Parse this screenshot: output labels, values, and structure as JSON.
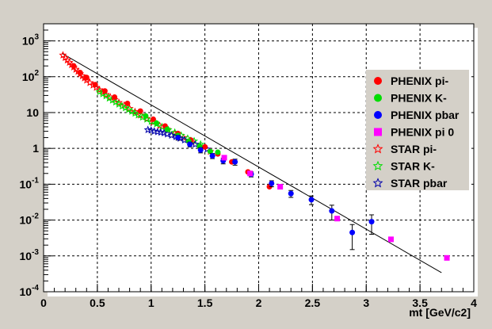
{
  "chart_data": {
    "type": "scatter",
    "title": "",
    "xlabel": "mt [GeV/c2]",
    "ylabel": "",
    "xlim": [
      0,
      4
    ],
    "ylim": [
      0.0001,
      3000
    ],
    "y_scale": "log",
    "grid": true,
    "legend_position": "right",
    "x_ticks": [
      "0",
      "0.5",
      "1",
      "1.5",
      "2",
      "2.5",
      "3",
      "3.5",
      "4"
    ],
    "y_ticks": [
      {
        "base": "10",
        "exp": "3",
        "value": 1000
      },
      {
        "base": "10",
        "exp": "2",
        "value": 100
      },
      {
        "base": "10",
        "exp": "",
        "value": 10
      },
      {
        "base": "1",
        "exp": "",
        "value": 1
      },
      {
        "base": "10",
        "exp": "-1",
        "value": 0.1
      },
      {
        "base": "10",
        "exp": "-2",
        "value": 0.01
      },
      {
        "base": "10",
        "exp": "-3",
        "value": 0.001
      },
      {
        "base": "10",
        "exp": "-4",
        "value": 0.0001
      }
    ],
    "fit_line": {
      "x": [
        0.17,
        3.7
      ],
      "y": [
        450,
        0.00034
      ],
      "color": "#000000"
    },
    "series": [
      {
        "name": "PHENIX pi-",
        "marker": "circle",
        "color": "#ff0000",
        "points": [
          {
            "x": 0.28,
            "y": 200
          },
          {
            "x": 0.34,
            "y": 130
          },
          {
            "x": 0.4,
            "y": 95
          },
          {
            "x": 0.48,
            "y": 60
          },
          {
            "x": 0.57,
            "y": 40
          },
          {
            "x": 0.66,
            "y": 27
          },
          {
            "x": 0.78,
            "y": 18
          },
          {
            "x": 0.9,
            "y": 11
          },
          {
            "x": 1.02,
            "y": 6.5
          },
          {
            "x": 1.13,
            "y": 4.2
          },
          {
            "x": 1.25,
            "y": 2.6
          },
          {
            "x": 1.37,
            "y": 1.7
          },
          {
            "x": 1.5,
            "y": 1.1
          },
          {
            "x": 1.62,
            "y": 0.7
          },
          {
            "x": 1.75,
            "y": 0.42
          },
          {
            "x": 1.9,
            "y": 0.22
          },
          {
            "x": 2.1,
            "y": 0.085
          }
        ]
      },
      {
        "name": "PHENIX K-",
        "marker": "circle",
        "color": "#00dd00",
        "points": [
          {
            "x": 0.95,
            "y": 8
          },
          {
            "x": 1.05,
            "y": 5.1
          },
          {
            "x": 1.15,
            "y": 3.4
          },
          {
            "x": 1.25,
            "y": 2.3
          },
          {
            "x": 1.35,
            "y": 1.6
          },
          {
            "x": 1.45,
            "y": 1.15
          },
          {
            "x": 1.55,
            "y": 0.82
          },
          {
            "x": 1.62,
            "y": 0.78
          }
        ]
      },
      {
        "name": "PHENIX pbar",
        "marker": "circle",
        "color": "#0000ff",
        "points": [
          {
            "x": 1.25,
            "y": 2.0,
            "err": 0.3
          },
          {
            "x": 1.36,
            "y": 1.3,
            "err": 0.2
          },
          {
            "x": 1.46,
            "y": 0.9,
            "err": 0.15
          },
          {
            "x": 1.57,
            "y": 0.62,
            "err": 0.1
          },
          {
            "x": 1.67,
            "y": 0.45,
            "err": 0.08
          },
          {
            "x": 1.78,
            "y": 0.42,
            "err": 0.08
          },
          {
            "x": 1.93,
            "y": 0.19,
            "err": 0.03
          },
          {
            "x": 2.12,
            "y": 0.105,
            "err": 0.02
          },
          {
            "x": 2.3,
            "y": 0.055,
            "err": 0.012
          },
          {
            "x": 2.49,
            "y": 0.037,
            "err": 0.01
          },
          {
            "x": 2.68,
            "y": 0.018,
            "err": 0.008
          },
          {
            "x": 2.87,
            "y": 0.0045,
            "err": 0.003
          },
          {
            "x": 3.05,
            "y": 0.009,
            "err": 0.005
          }
        ]
      },
      {
        "name": "PHENIX pi 0",
        "marker": "square",
        "color": "#ff00ff",
        "points": [
          {
            "x": 1.68,
            "y": 0.55
          },
          {
            "x": 1.92,
            "y": 0.2
          },
          {
            "x": 2.2,
            "y": 0.085
          },
          {
            "x": 2.73,
            "y": 0.011
          },
          {
            "x": 3.23,
            "y": 0.0029
          },
          {
            "x": 3.75,
            "y": 0.00088
          }
        ]
      },
      {
        "name": "STAR   pi-",
        "marker": "star",
        "color": "#ff0000",
        "points": [
          {
            "x": 0.18,
            "y": 400
          },
          {
            "x": 0.2,
            "y": 340
          },
          {
            "x": 0.22,
            "y": 290
          },
          {
            "x": 0.24,
            "y": 250
          },
          {
            "x": 0.26,
            "y": 215
          },
          {
            "x": 0.28,
            "y": 185
          },
          {
            "x": 0.3,
            "y": 160
          },
          {
            "x": 0.32,
            "y": 140
          },
          {
            "x": 0.34,
            "y": 120
          },
          {
            "x": 0.36,
            "y": 105
          },
          {
            "x": 0.38,
            "y": 92
          },
          {
            "x": 0.4,
            "y": 80
          },
          {
            "x": 0.43,
            "y": 68
          },
          {
            "x": 0.46,
            "y": 58
          },
          {
            "x": 0.49,
            "y": 50
          },
          {
            "x": 0.52,
            "y": 43
          },
          {
            "x": 0.55,
            "y": 37
          },
          {
            "x": 0.58,
            "y": 32
          },
          {
            "x": 0.62,
            "y": 27
          },
          {
            "x": 0.66,
            "y": 23
          },
          {
            "x": 0.7,
            "y": 19
          },
          {
            "x": 0.75,
            "y": 16
          },
          {
            "x": 0.8,
            "y": 13
          },
          {
            "x": 0.85,
            "y": 10.5
          },
          {
            "x": 0.9,
            "y": 8.5
          },
          {
            "x": 0.96,
            "y": 6.8
          },
          {
            "x": 1.02,
            "y": 5.4
          },
          {
            "x": 1.08,
            "y": 4.3
          },
          {
            "x": 1.15,
            "y": 3.4
          },
          {
            "x": 1.22,
            "y": 2.6
          },
          {
            "x": 1.3,
            "y": 2.0
          },
          {
            "x": 1.38,
            "y": 1.5
          },
          {
            "x": 1.46,
            "y": 1.1
          },
          {
            "x": 1.55,
            "y": 0.82
          }
        ]
      },
      {
        "name": "STAR   K-",
        "marker": "star",
        "color": "#00dd00",
        "points": [
          {
            "x": 0.52,
            "y": 38
          },
          {
            "x": 0.55,
            "y": 33
          },
          {
            "x": 0.58,
            "y": 29
          },
          {
            "x": 0.61,
            "y": 25
          },
          {
            "x": 0.64,
            "y": 22
          },
          {
            "x": 0.67,
            "y": 19.5
          },
          {
            "x": 0.7,
            "y": 17
          },
          {
            "x": 0.73,
            "y": 15
          },
          {
            "x": 0.76,
            "y": 13.5
          },
          {
            "x": 0.79,
            "y": 12
          },
          {
            "x": 0.82,
            "y": 10.7
          },
          {
            "x": 0.85,
            "y": 9.5
          },
          {
            "x": 0.88,
            "y": 8.5
          },
          {
            "x": 0.92,
            "y": 7.4
          },
          {
            "x": 0.96,
            "y": 6.5
          },
          {
            "x": 1.0,
            "y": 5.6
          },
          {
            "x": 1.05,
            "y": 4.8
          },
          {
            "x": 1.1,
            "y": 4.0
          },
          {
            "x": 1.16,
            "y": 3.3
          },
          {
            "x": 1.22,
            "y": 2.8
          },
          {
            "x": 1.28,
            "y": 2.3
          },
          {
            "x": 1.34,
            "y": 1.9
          },
          {
            "x": 1.4,
            "y": 1.6
          },
          {
            "x": 1.46,
            "y": 1.3
          }
        ]
      },
      {
        "name": "STAR   pbar",
        "marker": "star",
        "color": "#0000aa",
        "points": [
          {
            "x": 0.97,
            "y": 3.3
          },
          {
            "x": 1.0,
            "y": 3.2
          },
          {
            "x": 1.03,
            "y": 3.0
          },
          {
            "x": 1.06,
            "y": 2.9
          },
          {
            "x": 1.09,
            "y": 2.8
          },
          {
            "x": 1.12,
            "y": 2.7
          },
          {
            "x": 1.15,
            "y": 2.5
          },
          {
            "x": 1.19,
            "y": 2.3
          },
          {
            "x": 1.23,
            "y": 2.1
          },
          {
            "x": 1.27,
            "y": 1.9
          },
          {
            "x": 1.31,
            "y": 1.7
          },
          {
            "x": 1.36,
            "y": 1.5
          },
          {
            "x": 1.41,
            "y": 1.3
          },
          {
            "x": 1.46,
            "y": 1.1
          },
          {
            "x": 1.52,
            "y": 0.95
          }
        ]
      }
    ]
  }
}
